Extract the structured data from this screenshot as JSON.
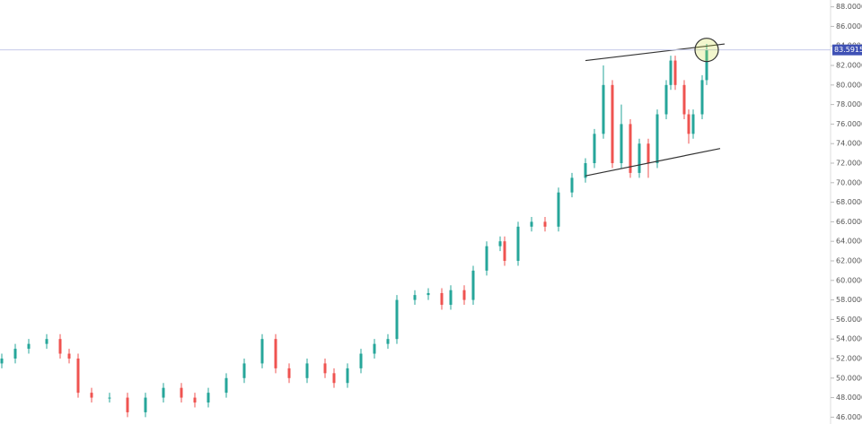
{
  "chart_data": {
    "type": "candlestick",
    "x": [
      0,
      3,
      6,
      10,
      13,
      15,
      17,
      20,
      24,
      28,
      32,
      36,
      40,
      43,
      46,
      50,
      54,
      58,
      61,
      64,
      68,
      72,
      74,
      77,
      80,
      83,
      86,
      88,
      92,
      95,
      98,
      100,
      103,
      105,
      108,
      111,
      112,
      115,
      118,
      121,
      124,
      127,
      130,
      132,
      134,
      136,
      138,
      140,
      142,
      144,
      146,
      148,
      149,
      150,
      152,
      153,
      154,
      156,
      157
    ],
    "open": [
      51.5,
      52,
      53,
      53.5,
      54,
      52.5,
      52,
      48.5,
      48,
      48,
      46.5,
      48,
      49,
      48,
      47.5,
      48.5,
      50,
      51.5,
      54,
      51,
      50,
      51.5,
      50.5,
      49.5,
      51,
      52.5,
      53.5,
      54,
      58,
      58.5,
      58.7,
      57.5,
      59,
      58,
      61,
      63.5,
      64,
      62,
      65.5,
      66,
      65.5,
      69,
      70.5,
      72,
      75,
      80,
      72,
      76,
      71,
      74,
      72,
      77,
      80,
      82.5,
      80,
      77,
      75,
      77,
      80.5
    ],
    "high": [
      52.5,
      53.5,
      54,
      54.5,
      54.5,
      53,
      52.5,
      49,
      48.5,
      48.5,
      48.5,
      49.5,
      49.5,
      48.5,
      49,
      50.5,
      52,
      54.5,
      54.5,
      51.5,
      52,
      52,
      51,
      51.5,
      53,
      54,
      54.5,
      58.5,
      59,
      59.2,
      59.2,
      59.5,
      59.5,
      61.5,
      64,
      64.5,
      64.5,
      66,
      66.5,
      66.5,
      69.5,
      71,
      72.5,
      75.5,
      82,
      80.5,
      78,
      76.5,
      74.5,
      74.5,
      77.5,
      80.5,
      83,
      83,
      80.5,
      77.5,
      77.5,
      81,
      84.2
    ],
    "low": [
      51,
      51.5,
      52.5,
      53,
      52,
      51.5,
      48,
      47.5,
      47.5,
      46,
      46,
      47.5,
      47.5,
      47,
      47,
      48,
      49.5,
      51,
      50.5,
      49.5,
      49.5,
      50,
      49,
      49,
      50.5,
      52,
      53,
      53.5,
      57.5,
      58,
      57,
      57,
      57.5,
      57.5,
      60.5,
      63,
      61.5,
      61.5,
      65,
      65,
      65,
      68.5,
      70,
      71.5,
      74.5,
      71.5,
      71.5,
      70.5,
      70.5,
      70.5,
      71.5,
      76.5,
      79.5,
      79.5,
      76.5,
      74,
      74.5,
      76.5,
      80
    ],
    "close": [
      52,
      53,
      53.5,
      54,
      52.5,
      52,
      48.5,
      48,
      48,
      46.5,
      48,
      49,
      48,
      47.5,
      48.5,
      50,
      51.5,
      54,
      51,
      50,
      51.5,
      50.5,
      49.5,
      51,
      52.5,
      53.5,
      54,
      58,
      58.5,
      58.7,
      57.5,
      59,
      58,
      61,
      63.5,
      64,
      62,
      65.5,
      66,
      65.5,
      69,
      70.5,
      72,
      75,
      80,
      72,
      76,
      71,
      74,
      72,
      77,
      80,
      82.5,
      80,
      77,
      75,
      77,
      80.5,
      83.5915
    ],
    "up_color": "#26a69a",
    "down_color": "#ef5350",
    "trendlines": [
      {
        "x": [
          130,
          161
        ],
        "y": [
          82.5,
          84.2
        ]
      },
      {
        "x": [
          130,
          160
        ],
        "y": [
          70.7,
          73.5
        ]
      }
    ],
    "xlim": [
      0,
      185
    ],
    "ylim": [
      45.3,
      88.7
    ],
    "yticks": [
      {
        "value": 46,
        "label": "46.0000"
      },
      {
        "value": 48,
        "label": "48.0000"
      },
      {
        "value": 50,
        "label": "50.0000"
      },
      {
        "value": 52,
        "label": "52.0000"
      },
      {
        "value": 54,
        "label": "54.0000"
      },
      {
        "value": 56,
        "label": "56.0000"
      },
      {
        "value": 58,
        "label": "58.0000"
      },
      {
        "value": 60,
        "label": "60.0000"
      },
      {
        "value": 62,
        "label": "62.0000"
      },
      {
        "value": 64,
        "label": "64.0000"
      },
      {
        "value": 66,
        "label": "66.0000"
      },
      {
        "value": 68,
        "label": "68.0000"
      },
      {
        "value": 70,
        "label": "70.0000"
      },
      {
        "value": 72,
        "label": "72.0000"
      },
      {
        "value": 74,
        "label": "74.0000"
      },
      {
        "value": 76,
        "label": "76.0000"
      },
      {
        "value": 78,
        "label": "78.0000"
      },
      {
        "value": 80,
        "label": "80.0000"
      },
      {
        "value": 82,
        "label": "82.0000"
      },
      {
        "value": 84,
        "label": "84.0000"
      },
      {
        "value": 86,
        "label": "86.0000"
      },
      {
        "value": 88,
        "label": "88.0000"
      }
    ]
  }
}
